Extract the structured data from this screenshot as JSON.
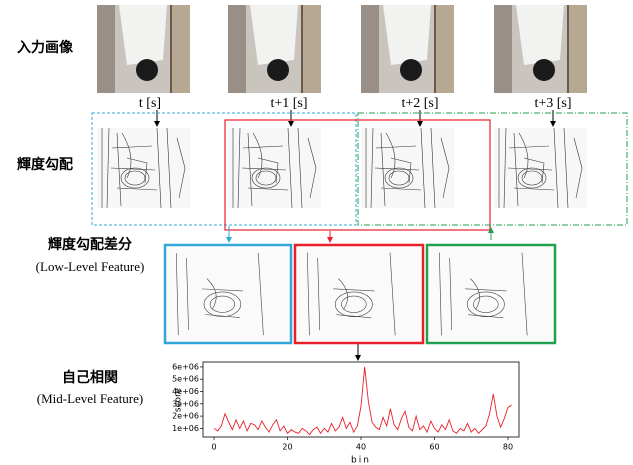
{
  "rows": {
    "input": "入力画像",
    "gradient": "輝度勾配",
    "difference": "輝度勾配差分",
    "difference_sub": "(Low-Level Feature)",
    "autocorr": "自己相関",
    "autocorr_sub": "(Mid-Level Feature)"
  },
  "time_labels": [
    "t [s]",
    "t+1 [s]",
    "t+2 [s]",
    "t+3 [s]"
  ],
  "chart_data": {
    "type": "line",
    "x_label": "bin",
    "y_label": "score",
    "color": "#e8202a",
    "xlim": [
      -3,
      83
    ],
    "ylim": [
      300000,
      6400000
    ],
    "xticks": [
      0,
      20,
      40,
      60,
      80
    ],
    "yticks": [
      {
        "value": 1000000,
        "label": "1e+06"
      },
      {
        "value": 2000000,
        "label": "2e+06"
      },
      {
        "value": 3000000,
        "label": "3e+06"
      },
      {
        "value": 4000000,
        "label": "4e+06"
      },
      {
        "value": 5000000,
        "label": "5e+06"
      },
      {
        "value": 6000000,
        "label": "6e+06"
      }
    ],
    "x": [
      0,
      1,
      2,
      3,
      4,
      5,
      6,
      7,
      8,
      9,
      10,
      11,
      12,
      13,
      14,
      15,
      16,
      17,
      18,
      19,
      20,
      21,
      22,
      23,
      24,
      25,
      26,
      27,
      28,
      29,
      30,
      31,
      32,
      33,
      34,
      35,
      36,
      37,
      38,
      39,
      40,
      41,
      42,
      43,
      44,
      45,
      46,
      47,
      48,
      49,
      50,
      51,
      52,
      53,
      54,
      55,
      56,
      57,
      58,
      59,
      60,
      61,
      62,
      63,
      64,
      65,
      66,
      67,
      68,
      69,
      70,
      71,
      72,
      73,
      74,
      75,
      76,
      77,
      78,
      79,
      80,
      81
    ],
    "values": [
      1000000,
      800000,
      1200000,
      2200000,
      1500000,
      900000,
      1700000,
      1000000,
      1600000,
      800000,
      1400000,
      1300000,
      900000,
      1600000,
      1100000,
      700000,
      1300000,
      1700000,
      800000,
      1200000,
      600000,
      900000,
      700000,
      600000,
      1000000,
      800000,
      500000,
      900000,
      1100000,
      600000,
      1000000,
      700000,
      1400000,
      800000,
      1100000,
      1900000,
      1000000,
      1500000,
      700000,
      1200000,
      2800000,
      6000000,
      3200000,
      1500000,
      1100000,
      900000,
      1900000,
      1200000,
      2600000,
      1300000,
      900000,
      1800000,
      2400000,
      1100000,
      800000,
      2000000,
      900000,
      1200000,
      700000,
      1600000,
      1000000,
      700000,
      1300000,
      900000,
      1700000,
      800000,
      600000,
      1000000,
      800000,
      1400000,
      700000,
      1000000,
      600000,
      900000,
      1200000,
      2200000,
      3800000,
      2000000,
      1100000,
      1800000,
      2700000,
      2900000
    ]
  }
}
